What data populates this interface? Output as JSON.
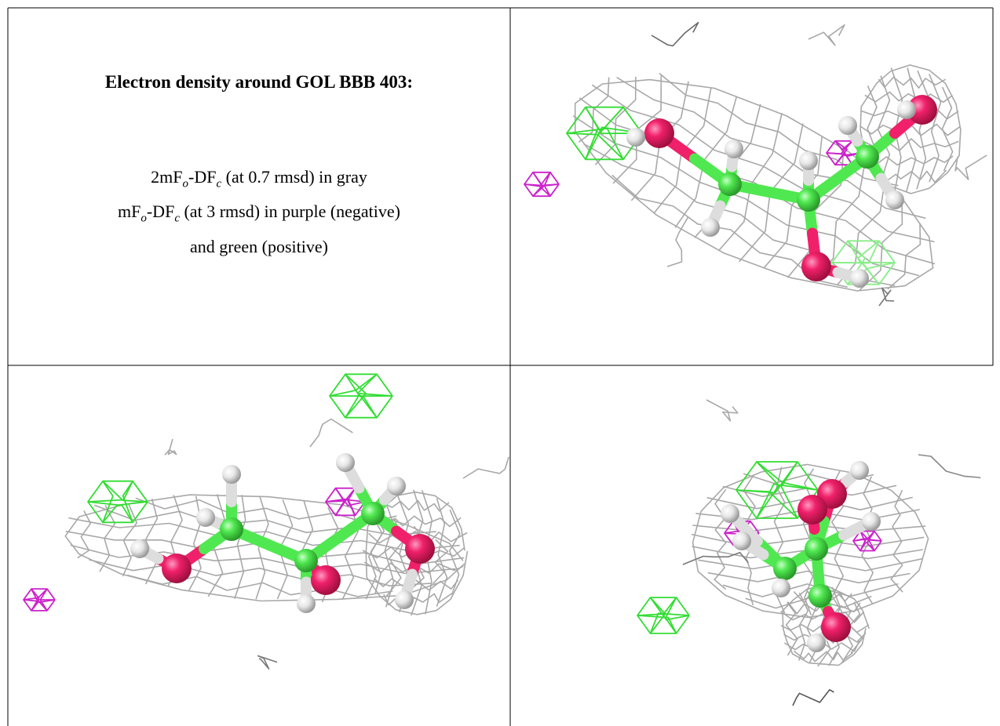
{
  "title": "Electron density around GOL BBB 403:",
  "legend": [
    [
      "2mF",
      "o",
      "-DF",
      "c",
      " (at 0.7 rmsd) in gray"
    ],
    [
      "mF",
      "o",
      "-DF",
      "c",
      " (at 3 rmsd) in purple (negative)"
    ],
    [
      "and green (positive)"
    ]
  ]
}
